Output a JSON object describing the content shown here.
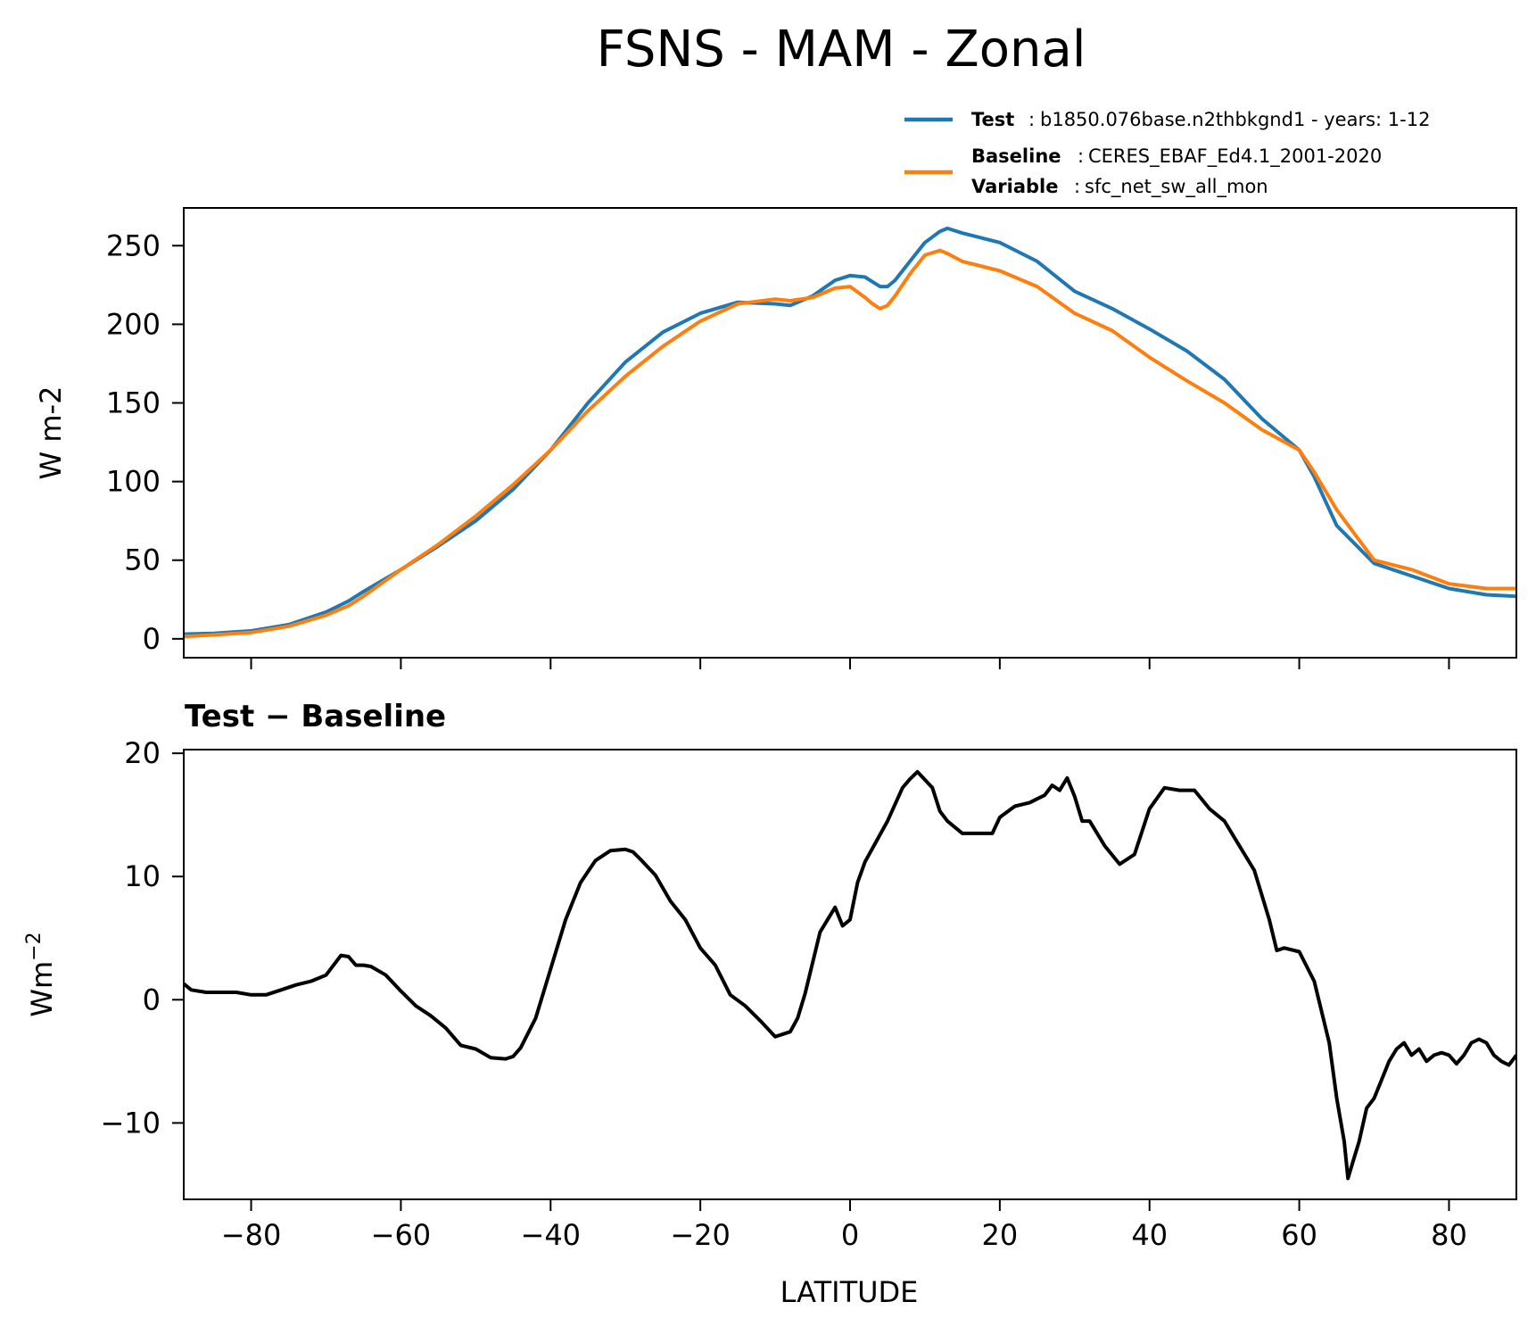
{
  "title": "FSNS - MAM - Zonal",
  "legend": {
    "test": {
      "key": "Test",
      "value": "b1850.076base.n2thbkgnd1 - years: 1-12",
      "color": "#1f77b4"
    },
    "baseline": {
      "key": "Baseline",
      "value": "CERES_EBAF_Ed4.1_2001-2020",
      "color": "#ff7f0e"
    },
    "variable": {
      "key": "Variable",
      "value": "sfc_net_sw_all_mon"
    }
  },
  "chart_data": [
    {
      "type": "line",
      "ylabel": "W m-2",
      "xlim": [
        -89,
        89
      ],
      "ylim": [
        -12,
        274
      ],
      "yticks": [
        0,
        50,
        100,
        150,
        200,
        250
      ],
      "x": [
        -89,
        -85,
        -80,
        -75,
        -70,
        -67,
        -65,
        -60,
        -55,
        -50,
        -45,
        -40,
        -35,
        -30,
        -25,
        -20,
        -15,
        -10,
        -8,
        -5,
        -2,
        0,
        2,
        3,
        4,
        5,
        6,
        8,
        10,
        12,
        13,
        15,
        20,
        25,
        30,
        35,
        40,
        45,
        50,
        55,
        60,
        62,
        65,
        70,
        75,
        80,
        85,
        89
      ],
      "series": [
        {
          "name": "Test",
          "color": "#1f77b4",
          "values": [
            3,
            3.5,
            5,
            9,
            17,
            24,
            30,
            44,
            59,
            75,
            95,
            120,
            150,
            176,
            195,
            207,
            214,
            213,
            212,
            218,
            228,
            231,
            230,
            227,
            224,
            224,
            228,
            240,
            252,
            259,
            261,
            258,
            252,
            240,
            221,
            210,
            197,
            183,
            165,
            140,
            120,
            103,
            72,
            48,
            40,
            32,
            28,
            27
          ]
        },
        {
          "name": "Baseline",
          "color": "#ff7f0e",
          "values": [
            1.5,
            2.5,
            4,
            8,
            15,
            21,
            27,
            44,
            60,
            78,
            98,
            120,
            145,
            167,
            186,
            202,
            213,
            216,
            215,
            217,
            223,
            224,
            217,
            213,
            210,
            212,
            218,
            232,
            244,
            247,
            245,
            240,
            234,
            224,
            207,
            196,
            179,
            164,
            150,
            133,
            120,
            106,
            82,
            50,
            44,
            35,
            32,
            32
          ]
        }
      ]
    },
    {
      "type": "line",
      "title": "Test − Baseline",
      "xlabel": "LATITUDE",
      "ylabel": "Wm⁻²",
      "xlim": [
        -89,
        89
      ],
      "ylim": [
        -16.2,
        20.3
      ],
      "xticks": [
        -80,
        -60,
        -40,
        -20,
        0,
        20,
        40,
        60,
        80
      ],
      "xtick_labels": [
        "−80",
        "−60",
        "−40",
        "−20",
        "0",
        "20",
        "40",
        "60",
        "80"
      ],
      "yticks": [
        -10,
        0,
        10,
        20
      ],
      "ytick_labels": [
        "−10",
        "0",
        "10",
        "20"
      ],
      "x": [
        -89,
        -88,
        -86,
        -84,
        -82,
        -80,
        -78,
        -76,
        -74,
        -72,
        -70,
        -68,
        -67,
        -66,
        -65,
        -64,
        -62,
        -60,
        -58,
        -56,
        -54,
        -52,
        -50,
        -48,
        -46,
        -45,
        -44,
        -42,
        -40,
        -38,
        -36,
        -34,
        -32,
        -30,
        -29,
        -28,
        -26,
        -24,
        -22,
        -20,
        -18,
        -16,
        -14,
        -12,
        -10,
        -8,
        -7,
        -6,
        -5,
        -4,
        -3,
        -2,
        -1,
        0,
        1,
        2,
        3,
        5,
        7,
        8,
        9,
        11,
        12,
        13,
        15,
        17,
        18,
        19,
        20,
        22,
        24,
        25,
        26,
        27,
        28,
        29,
        30,
        31,
        32,
        34,
        36,
        38,
        40,
        42,
        44,
        46,
        48,
        50,
        52,
        54,
        56,
        57,
        58,
        60,
        62,
        64,
        65,
        66,
        66.5,
        67,
        68,
        69,
        70,
        71,
        72,
        73,
        74,
        75,
        76,
        77,
        78,
        79,
        80,
        81,
        82,
        83,
        84,
        85,
        86,
        87,
        88,
        89
      ],
      "series": [
        {
          "name": "Test − Baseline",
          "color": "#000000",
          "values": [
            1.3,
            0.8,
            0.6,
            0.6,
            0.6,
            0.4,
            0.4,
            0.8,
            1.2,
            1.5,
            2.0,
            3.6,
            3.5,
            2.8,
            2.8,
            2.7,
            2.0,
            0.7,
            -0.5,
            -1.3,
            -2.3,
            -3.7,
            -4.0,
            -4.7,
            -4.8,
            -4.6,
            -3.9,
            -1.5,
            2.5,
            6.5,
            9.5,
            11.3,
            12.1,
            12.2,
            12.0,
            11.4,
            10.1,
            8.0,
            6.5,
            4.2,
            2.8,
            0.4,
            -0.5,
            -1.7,
            -3.0,
            -2.6,
            -1.5,
            0.5,
            3.0,
            5.5,
            6.5,
            7.5,
            6.0,
            6.5,
            9.5,
            11.2,
            12.3,
            14.5,
            17.2,
            17.9,
            18.5,
            17.2,
            15.3,
            14.5,
            13.5,
            13.5,
            13.5,
            13.5,
            14.8,
            15.7,
            16.0,
            16.3,
            16.6,
            17.4,
            17.0,
            18.0,
            16.5,
            14.5,
            14.5,
            12.5,
            11.0,
            11.8,
            15.5,
            17.2,
            17.0,
            17.0,
            15.5,
            14.5,
            12.5,
            10.5,
            6.5,
            4.0,
            4.2,
            3.9,
            1.5,
            -3.5,
            -8.0,
            -11.5,
            -14.5,
            -13.5,
            -11.5,
            -8.8,
            -8.0,
            -6.5,
            -5.0,
            -4.0,
            -3.5,
            -4.5,
            -4.0,
            -5.0,
            -4.5,
            -4.3,
            -4.5,
            -5.2,
            -4.5,
            -3.5,
            -3.2,
            -3.5,
            -4.5,
            -5.0,
            -5.3,
            -4.5
          ]
        }
      ]
    }
  ]
}
